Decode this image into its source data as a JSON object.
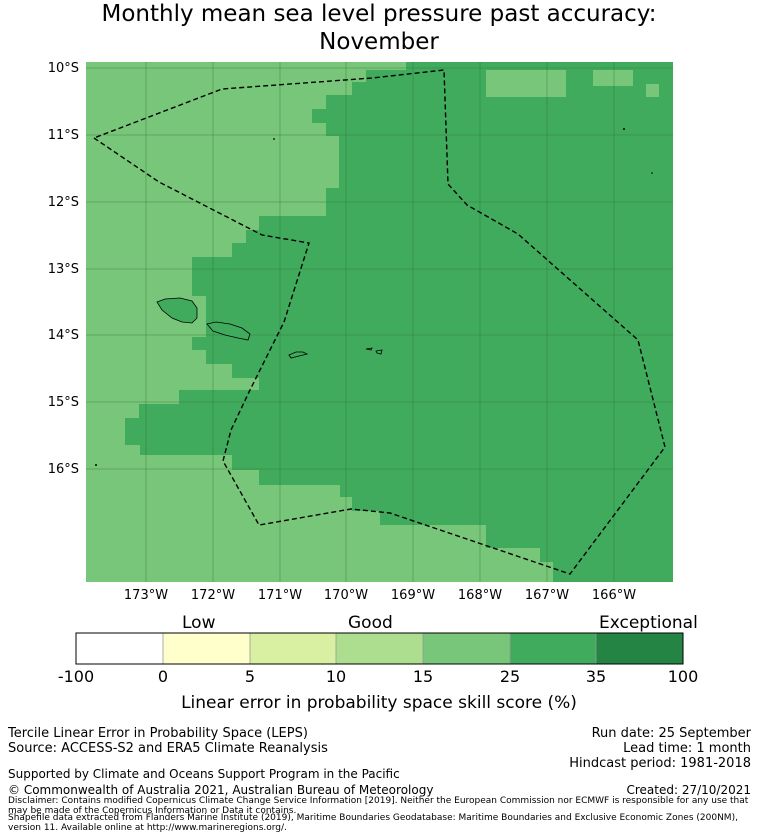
{
  "title_line1": "Monthly mean sea level pressure past accuracy:",
  "title_line2": "November",
  "map": {
    "lat_labels": [
      "10°S",
      "11°S",
      "12°S",
      "13°S",
      "14°S",
      "15°S",
      "16°S"
    ],
    "lon_labels": [
      "173°W",
      "172°W",
      "171°W",
      "170°W",
      "169°W",
      "168°W",
      "167°W",
      "166°W"
    ],
    "colors": {
      "good": "#78c679",
      "very_good": "#41ab5d",
      "boundary": "#000000"
    }
  },
  "colorbar": {
    "categories": [
      "Low",
      "Good",
      "Exceptional"
    ],
    "ticks": [
      "-100",
      "0",
      "5",
      "10",
      "15",
      "25",
      "35",
      "100"
    ],
    "colors": [
      "#ffffff",
      "#ffffcc",
      "#d9f0a3",
      "#addd8e",
      "#78c679",
      "#41ab5d",
      "#238443"
    ],
    "label": "Linear error in probability space skill score (%)"
  },
  "footer": {
    "left1": "Tercile Linear Error in Probability Space (LEPS)",
    "left2": "Source: ACCESS-S2 and ERA5 Climate Reanalysis",
    "left3": "Supported by Climate and Oceans Support Program in the Pacific",
    "left4": "© Commonwealth of Australia 2021, Australian Bureau of Meteorology",
    "right1": "Run date: 25 September",
    "right2": "Lead time: 1 month",
    "right3": "Hindcast period: 1981-2018",
    "right4": "Created: 27/10/2021",
    "disclaimer": "Disclaimer: Contains modified Copernicus Climate Change Service Information [2019]. Neither the European Commission nor ECMWF is responsible for any use that may be made of the Copernicus Information or Data it contains.",
    "shapefile": "Shapefile data extracted from Flanders Marine Institute (2019), Maritime Boundaries Geodatabase: Maritime Boundaries and Exclusive Economic Zones (200NM), version 11. Available online at http://www.marineregions.org/."
  }
}
